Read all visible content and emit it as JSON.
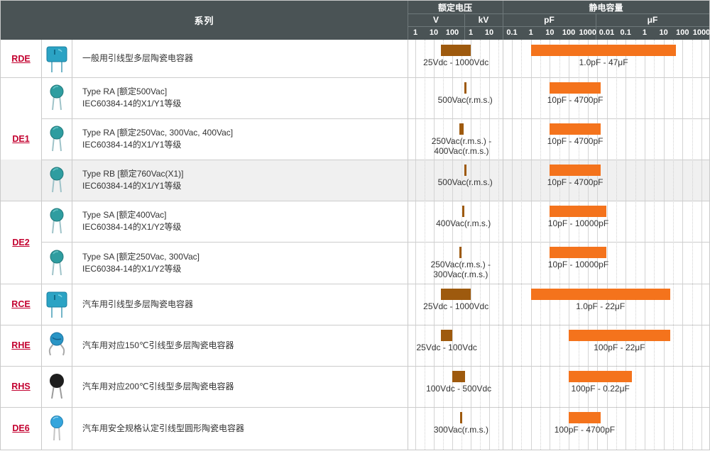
{
  "colors": {
    "header_bg": "#4a5355",
    "series_link_red": "#c3002f",
    "voltage_bar_brown": "#9e5a0e",
    "capacitance_bar_orange": "#f4731c",
    "row_shade": "#f0f0f0",
    "grid_line": "#d4d4d4",
    "cell_border": "#c9c9c9",
    "text": "#333333"
  },
  "header": {
    "series_label": "系列",
    "voltage_label": "额定电压",
    "capacitance_label": "静电容量",
    "units": {
      "v": "V",
      "kv": "kV",
      "pf": "pF",
      "uf": "μF"
    },
    "v_ticks": [
      "1",
      "10",
      "100"
    ],
    "kv_ticks": [
      "1",
      "10"
    ],
    "pf_ticks": [
      "0.1",
      "1",
      "10",
      "100",
      "1000"
    ],
    "uf_ticks": [
      "0.01",
      "0.1",
      "1",
      "10",
      "100",
      "1000"
    ]
  },
  "rows": [
    {
      "group": "RDE",
      "icon": "box-capacitor-icon",
      "shaded": false,
      "desc": [
        "一般用引线型多层陶瓷电容器"
      ],
      "voltage": {
        "min_v": 25,
        "max_v": 1000,
        "label": "25Vdc - 1000Vdc"
      },
      "capacitance": {
        "min_pf": 1,
        "max_pf": 47000000,
        "label": "1.0pF - 47μF"
      }
    },
    {
      "group": "DE1",
      "icon": "disc-capacitor-icon",
      "shaded": false,
      "desc": [
        "Type RA [额定500Vac]",
        "IEC60384-14的X1/Y1等级"
      ],
      "voltage": {
        "min_v": 500,
        "max_v": 500,
        "label": "500Vac(r.m.s.)"
      },
      "capacitance": {
        "min_pf": 10,
        "max_pf": 4700,
        "label": "10pF - 4700pF"
      }
    },
    {
      "group": "DE1",
      "icon": "disc-capacitor-icon",
      "shaded": false,
      "desc": [
        "Type RA [额定250Vac, 300Vac, 400Vac]",
        "IEC60384-14的X1/Y1等级"
      ],
      "voltage": {
        "min_v": 250,
        "max_v": 400,
        "label": "250Vac(r.m.s.) -\n400Vac(r.m.s.)"
      },
      "capacitance": {
        "min_pf": 10,
        "max_pf": 4700,
        "label": "10pF - 4700pF"
      }
    },
    {
      "group": "DE1",
      "icon": "disc-capacitor-icon",
      "shaded": true,
      "desc": [
        "Type RB [额定760Vac(X1)]",
        "IEC60384-14的X1/Y1等级"
      ],
      "voltage": {
        "min_v": 500,
        "max_v": 500,
        "label": "500Vac(r.m.s.)"
      },
      "capacitance": {
        "min_pf": 10,
        "max_pf": 4700,
        "label": "10pF - 4700pF"
      }
    },
    {
      "group": "DE2",
      "icon": "disc-capacitor-icon",
      "shaded": false,
      "desc": [
        "Type SA [额定400Vac]",
        "IEC60384-14的X1/Y2等级"
      ],
      "voltage": {
        "min_v": 400,
        "max_v": 400,
        "label": "400Vac(r.m.s.)"
      },
      "capacitance": {
        "min_pf": 10,
        "max_pf": 10000,
        "label": "10pF - 10000pF"
      }
    },
    {
      "group": "DE2",
      "icon": "disc-capacitor-icon",
      "shaded": false,
      "desc": [
        "Type SA [额定250Vac, 300Vac]",
        "IEC60384-14的X1/Y2等级"
      ],
      "voltage": {
        "min_v": 250,
        "max_v": 300,
        "label": "250Vac(r.m.s.) -\n300Vac(r.m.s.)"
      },
      "capacitance": {
        "min_pf": 10,
        "max_pf": 10000,
        "label": "10pF - 10000pF"
      }
    },
    {
      "group": "RCE",
      "icon": "box-capacitor-icon",
      "shaded": false,
      "desc": [
        "汽车用引线型多层陶瓷电容器"
      ],
      "voltage": {
        "min_v": 25,
        "max_v": 1000,
        "label": "25Vdc - 1000Vdc"
      },
      "capacitance": {
        "min_pf": 1,
        "max_pf": 22000000,
        "label": "1.0pF - 22μF"
      }
    },
    {
      "group": "RHE",
      "icon": "crimped-lead-disc-capacitor-icon",
      "shaded": false,
      "desc": [
        "汽车用对应150℃引线型多层陶瓷电容器"
      ],
      "voltage": {
        "min_v": 25,
        "max_v": 100,
        "label": "25Vdc - 100Vdc"
      },
      "capacitance": {
        "min_pf": 100,
        "max_pf": 22000000,
        "label": "100pF - 22μF"
      }
    },
    {
      "group": "RHS",
      "icon": "black-disc-capacitor-icon",
      "shaded": false,
      "desc": [
        "汽车用对应200℃引线型多层陶瓷电容器"
      ],
      "voltage": {
        "min_v": 100,
        "max_v": 500,
        "label": "100Vdc - 500Vdc"
      },
      "capacitance": {
        "min_pf": 100,
        "max_pf": 220000,
        "label": "100pF - 0.22μF"
      }
    },
    {
      "group": "DE6",
      "icon": "round-disc-capacitor-icon",
      "shaded": false,
      "desc": [
        "汽车用安全规格认定引线型圆形陶瓷电容器"
      ],
      "voltage": {
        "min_v": 300,
        "max_v": 300,
        "label": "300Vac(r.m.s.)"
      },
      "capacitance": {
        "min_pf": 100,
        "max_pf": 4700,
        "label": "100pF - 4700pF"
      }
    }
  ],
  "chart_data": {
    "type": "bar",
    "subtype": "log_range_comparison",
    "title": "",
    "axes": [
      {
        "name": "额定电压",
        "scale": "log",
        "unit_groups": [
          {
            "unit": "V",
            "ticks": [
              1,
              10,
              100
            ]
          },
          {
            "unit": "kV",
            "ticks": [
              1,
              10
            ]
          }
        ],
        "range_v": [
          1,
          31623
        ]
      },
      {
        "name": "静电容量",
        "scale": "log",
        "unit_groups": [
          {
            "unit": "pF",
            "ticks": [
              0.1,
              1,
              10,
              100,
              1000
            ]
          },
          {
            "unit": "μF",
            "ticks": [
              0.01,
              0.1,
              1,
              10,
              100,
              1000
            ]
          }
        ],
        "range_pf": [
          0.1,
          1000000000
        ]
      }
    ],
    "series": [
      {
        "name": "RDE",
        "voltage_v": [
          25,
          1000
        ],
        "voltage_label": "25Vdc - 1000Vdc",
        "capacitance_pf": [
          1,
          47000000
        ],
        "capacitance_label": "1.0pF - 47μF"
      },
      {
        "name": "DE1",
        "variant": "Type RA [额定500Vac]",
        "voltage_v": [
          500,
          500
        ],
        "voltage_label": "500Vac(r.m.s.)",
        "capacitance_pf": [
          10,
          4700
        ],
        "capacitance_label": "10pF - 4700pF"
      },
      {
        "name": "DE1",
        "variant": "Type RA [额定250Vac, 300Vac, 400Vac]",
        "voltage_v": [
          250,
          400
        ],
        "voltage_label": "250Vac(r.m.s.) - 400Vac(r.m.s.)",
        "capacitance_pf": [
          10,
          4700
        ],
        "capacitance_label": "10pF - 4700pF"
      },
      {
        "name": "DE1",
        "variant": "Type RB [额定760Vac(X1)]",
        "voltage_v": [
          500,
          500
        ],
        "voltage_label": "500Vac(r.m.s.)",
        "capacitance_pf": [
          10,
          4700
        ],
        "capacitance_label": "10pF - 4700pF"
      },
      {
        "name": "DE2",
        "variant": "Type SA [额定400Vac]",
        "voltage_v": [
          400,
          400
        ],
        "voltage_label": "400Vac(r.m.s.)",
        "capacitance_pf": [
          10,
          10000
        ],
        "capacitance_label": "10pF - 10000pF"
      },
      {
        "name": "DE2",
        "variant": "Type SA [额定250Vac, 300Vac]",
        "voltage_v": [
          250,
          300
        ],
        "voltage_label": "250Vac(r.m.s.) - 300Vac(r.m.s.)",
        "capacitance_pf": [
          10,
          10000
        ],
        "capacitance_label": "10pF - 10000pF"
      },
      {
        "name": "RCE",
        "voltage_v": [
          25,
          1000
        ],
        "voltage_label": "25Vdc - 1000Vdc",
        "capacitance_pf": [
          1,
          22000000
        ],
        "capacitance_label": "1.0pF - 22μF"
      },
      {
        "name": "RHE",
        "voltage_v": [
          25,
          100
        ],
        "voltage_label": "25Vdc - 100Vdc",
        "capacitance_pf": [
          100,
          22000000
        ],
        "capacitance_label": "100pF - 22μF"
      },
      {
        "name": "RHS",
        "voltage_v": [
          100,
          500
        ],
        "voltage_label": "100Vdc - 500Vdc",
        "capacitance_pf": [
          100,
          220000
        ],
        "capacitance_label": "100pF - 0.22μF"
      },
      {
        "name": "DE6",
        "voltage_v": [
          300,
          300
        ],
        "voltage_label": "300Vac(r.m.s.)",
        "capacitance_pf": [
          100,
          4700
        ],
        "capacitance_label": "100pF - 4700pF"
      }
    ]
  }
}
